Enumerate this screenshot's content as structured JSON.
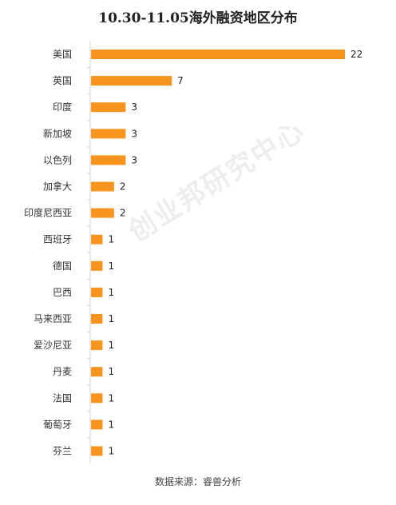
{
  "chart_data": {
    "type": "bar",
    "orientation": "horizontal",
    "title": "10.30-11.05海外融资地区分布",
    "categories": [
      "美国",
      "英国",
      "印度",
      "新加坡",
      "以色列",
      "加拿大",
      "印度尼西亚",
      "西班牙",
      "德国",
      "巴西",
      "马来西亚",
      "爱沙尼亚",
      "丹麦",
      "法国",
      "葡萄牙",
      "芬兰"
    ],
    "values": [
      22,
      7,
      3,
      3,
      3,
      2,
      2,
      1,
      1,
      1,
      1,
      1,
      1,
      1,
      1,
      1
    ],
    "xlim": [
      0,
      22
    ],
    "bar_color": "#f7941d",
    "grid": false
  },
  "source": "数据来源：睿兽分析",
  "watermark": "创业邦研究中心"
}
